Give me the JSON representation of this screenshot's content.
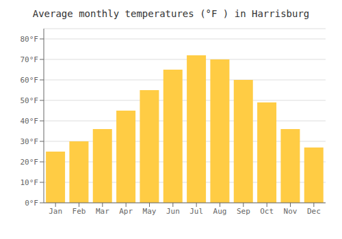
{
  "chart_data": {
    "type": "bar",
    "title": "Average monthly temperatures (°F ) in Harrisburg",
    "categories": [
      "Jan",
      "Feb",
      "Mar",
      "Apr",
      "May",
      "Jun",
      "Jul",
      "Aug",
      "Sep",
      "Oct",
      "Nov",
      "Dec"
    ],
    "values": [
      25,
      30,
      36,
      45,
      55,
      65,
      72,
      70,
      60,
      49,
      36,
      27
    ],
    "color": "#FFCC44",
    "ylim": [
      0,
      85
    ],
    "yticks": [
      {
        "value": 0,
        "label": "0°F"
      },
      {
        "value": 10,
        "label": "10°F"
      },
      {
        "value": 20,
        "label": "20°F"
      },
      {
        "value": 30,
        "label": "30°F"
      },
      {
        "value": 40,
        "label": "40°F"
      },
      {
        "value": 50,
        "label": "50°F"
      },
      {
        "value": 60,
        "label": "60°F"
      },
      {
        "value": 70,
        "label": "70°F"
      },
      {
        "value": 80,
        "label": "80°F"
      }
    ],
    "grid": true
  }
}
